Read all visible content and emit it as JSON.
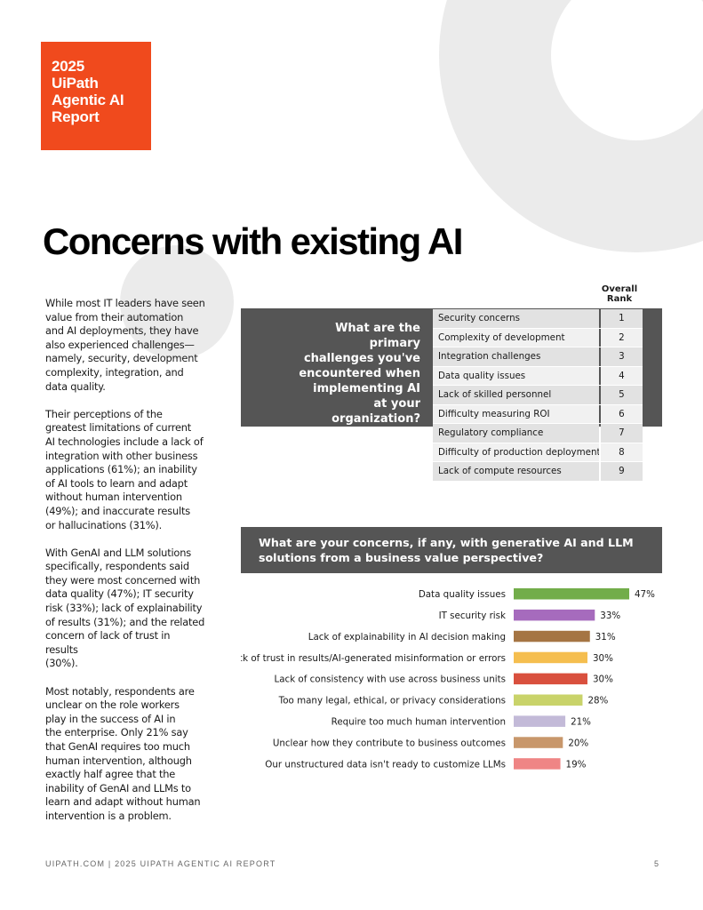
{
  "badge": {
    "text": "2025\nUiPath\nAgentic AI\nReport",
    "color": "#f04a1d"
  },
  "title": "Concerns with existing AI",
  "body": [
    "While most IT leaders have seen\nvalue from their automation\nand AI deployments, they have\nalso experienced challenges—\nnamely, security, development\ncomplexity, integration, and\ndata quality.",
    "Their perceptions of the\ngreatest limitations of current\nAI technologies include a lack of\nintegration with other business\napplications (61%); an inability\nof AI tools to learn and adapt\nwithout human intervention\n(49%); and inaccurate results\nor hallucinations (31%).",
    "With GenAI and LLM solutions\nspecifically, respondents said\nthey were most concerned with\ndata quality (47%); IT security\nrisk (33%); lack of explainability\nof results (31%); and the related\nconcern of lack of trust in results\n(30%).",
    "Most notably, respondents are\nunclear on the role workers\nplay in the success of AI in\nthe enterprise. Only 21% say\nthat GenAI requires too much\nhuman intervention, although\nexactly half agree that the\ninability of GenAI and LLMs to\nlearn and adapt without human\nintervention is a problem."
  ],
  "rank_section": {
    "question": "What are the primary\nchallenges you've\nencountered when\nimplementing AI\nat your organization?",
    "rank_header": "Overall\nRank",
    "rows": [
      {
        "label": "Security concerns",
        "rank": "1"
      },
      {
        "label": "Complexity of development",
        "rank": "2"
      },
      {
        "label": "Integration challenges",
        "rank": "3"
      },
      {
        "label": "Data quality issues",
        "rank": "4"
      },
      {
        "label": "Lack of skilled personnel",
        "rank": "5"
      },
      {
        "label": "Difficulty measuring ROI",
        "rank": "6"
      },
      {
        "label": "Regulatory compliance",
        "rank": "7"
      },
      {
        "label": "Difficulty of production deployment",
        "rank": "8"
      },
      {
        "label": "Lack of compute resources",
        "rank": "9"
      }
    ]
  },
  "concerns_section": {
    "question": "What are your concerns, if any, with generative AI and LLM\nsolutions from a business value perspective?"
  },
  "chart_data": {
    "type": "bar",
    "orientation": "horizontal",
    "categories": [
      "Data quality issues",
      "IT security risk",
      "Lack of explainability in AI decision making",
      "Lack of trust in results/AI-generated misinformation or errors",
      "Lack of consistency with use across business units",
      "Too many legal, ethical, or privacy considerations",
      "Require too much human intervention",
      "Unclear how they contribute to business outcomes",
      "Our unstructured data isn't ready to customize LLMs"
    ],
    "values": [
      47,
      33,
      31,
      30,
      30,
      28,
      21,
      20,
      19
    ],
    "value_labels": [
      "47%",
      "33%",
      "31%",
      "30%",
      "30%",
      "28%",
      "21%",
      "20%",
      "19%"
    ],
    "colors": [
      "#72ad4a",
      "#a66bbd",
      "#a57543",
      "#f5be4f",
      "#d9503e",
      "#c9d36a",
      "#c3bad8",
      "#c8976b",
      "#ef8585"
    ],
    "xlim": [
      0,
      47
    ],
    "grid": false,
    "legend": false
  },
  "footer": {
    "text": "UIPATH.COM | 2025 UIPATH AGENTIC AI REPORT",
    "page": "5"
  }
}
